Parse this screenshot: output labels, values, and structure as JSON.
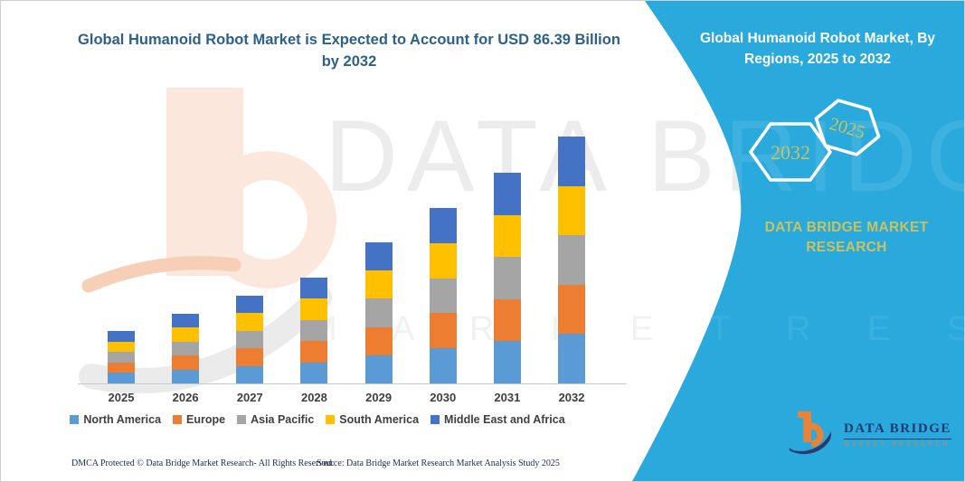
{
  "main_title": {
    "line1": "Global Humanoid Robot Market is Expected to Account for USD 86.39 Billion",
    "line2": "by 2032"
  },
  "panel": {
    "title_line1": "Global Humanoid Robot Market, By",
    "title_line2": "Regions, 2025 to 2032",
    "hexagon_back_label": "2032",
    "hexagon_front_label": "2025",
    "brand_line1": "DATA BRIDGE MARKET",
    "brand_line2": "RESEARCH",
    "background_color": "#29a9dc",
    "gold_text_color": "#c9c25e"
  },
  "watermark": {
    "big_text": "DATA BRIDGE",
    "row_text": "MARKET RESEARCH"
  },
  "footer": {
    "left_text": "DMCA Protected © Data Bridge Market Research-  All Rights Reserved.",
    "right_text": "Source: Data Bridge Market Research  Market Analysis Study 2025"
  },
  "logo": {
    "name": "DATA BRIDGE",
    "subtitle": "MARKET RESEARCH"
  },
  "chart_data": {
    "type": "bar",
    "stacked": true,
    "title": "",
    "xlabel": "",
    "ylabel": "",
    "unit": "USD Billion (estimated; y-axis not shown)",
    "y_axis_shown": false,
    "ylim": [
      0,
      90
    ],
    "grid": false,
    "legend_position": "bottom",
    "categories": [
      "2025",
      "2026",
      "2027",
      "2028",
      "2029",
      "2030",
      "2031",
      "2032"
    ],
    "series": [
      {
        "name": "North America",
        "color": "#5B9BD5",
        "values": [
          3.67,
          4.87,
          6.14,
          7.4,
          9.87,
          12.28,
          14.75,
          17.28
        ]
      },
      {
        "name": "Europe",
        "color": "#ED7D31",
        "values": [
          3.67,
          4.87,
          6.14,
          7.4,
          9.87,
          12.28,
          14.75,
          17.28
        ]
      },
      {
        "name": "Asia Pacific",
        "color": "#A5A5A5",
        "values": [
          3.67,
          4.87,
          6.14,
          7.4,
          9.87,
          12.28,
          14.75,
          17.28
        ]
      },
      {
        "name": "South America",
        "color": "#FFC000",
        "values": [
          3.67,
          4.87,
          6.14,
          7.4,
          9.87,
          12.28,
          14.75,
          17.28
        ]
      },
      {
        "name": "Middle East and Africa",
        "color": "#4472C4",
        "values": [
          3.67,
          4.87,
          6.14,
          7.4,
          9.87,
          12.28,
          14.75,
          17.28
        ]
      }
    ],
    "totals": [
      18.4,
      24.4,
      30.7,
      37.0,
      49.4,
      61.4,
      73.7,
      86.39
    ]
  }
}
